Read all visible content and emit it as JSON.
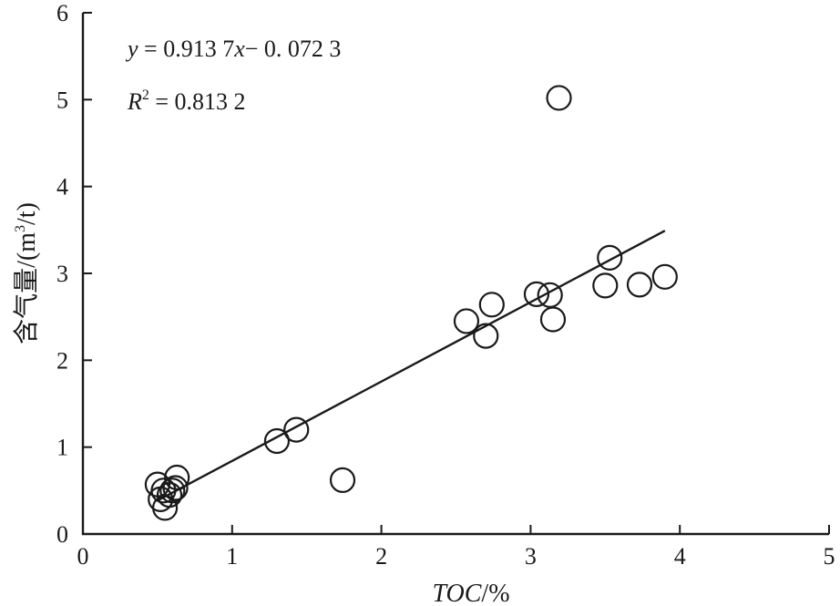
{
  "chart_data": {
    "type": "scatter",
    "title": "",
    "xlabel": "TOC/%",
    "xlabel_parts": {
      "italic": "TOC",
      "rest": "/%"
    },
    "ylabel": "含气量/(m³/t)",
    "ylabel_parts": {
      "base": "含气量/(m",
      "sup": "3",
      "tail": "/t)"
    },
    "xlim": [
      0,
      5
    ],
    "ylim": [
      0,
      6
    ],
    "x_ticks": [
      "0",
      "1",
      "2",
      "3",
      "4",
      "5"
    ],
    "y_ticks": [
      "0",
      "1",
      "2",
      "3",
      "4",
      "5",
      "6"
    ],
    "grid": false,
    "legend": "none",
    "points": [
      {
        "x": 0.5,
        "y": 0.57
      },
      {
        "x": 0.52,
        "y": 0.4
      },
      {
        "x": 0.54,
        "y": 0.5
      },
      {
        "x": 0.55,
        "y": 0.3
      },
      {
        "x": 0.58,
        "y": 0.45
      },
      {
        "x": 0.6,
        "y": 0.5
      },
      {
        "x": 0.62,
        "y": 0.53
      },
      {
        "x": 0.63,
        "y": 0.65
      },
      {
        "x": 1.3,
        "y": 1.07
      },
      {
        "x": 1.43,
        "y": 1.2
      },
      {
        "x": 1.74,
        "y": 0.62
      },
      {
        "x": 2.57,
        "y": 2.45
      },
      {
        "x": 2.7,
        "y": 2.28
      },
      {
        "x": 2.74,
        "y": 2.64
      },
      {
        "x": 3.04,
        "y": 2.76
      },
      {
        "x": 3.13,
        "y": 2.75
      },
      {
        "x": 3.15,
        "y": 2.47
      },
      {
        "x": 3.19,
        "y": 5.02
      },
      {
        "x": 3.5,
        "y": 2.86
      },
      {
        "x": 3.53,
        "y": 3.18
      },
      {
        "x": 3.73,
        "y": 2.87
      },
      {
        "x": 3.9,
        "y": 2.96
      }
    ],
    "fit": {
      "slope": 0.9137,
      "intercept": -0.0723,
      "x_range": [
        0.5,
        3.9
      ]
    },
    "annotations": {
      "equation": {
        "var_y": "y",
        "mid": " = 0.913 7",
        "var_x": "x",
        "tail": "− 0. 072 3"
      },
      "r2": {
        "var": "R",
        "sup": "2",
        "tail": " = 0.813 2"
      }
    }
  }
}
